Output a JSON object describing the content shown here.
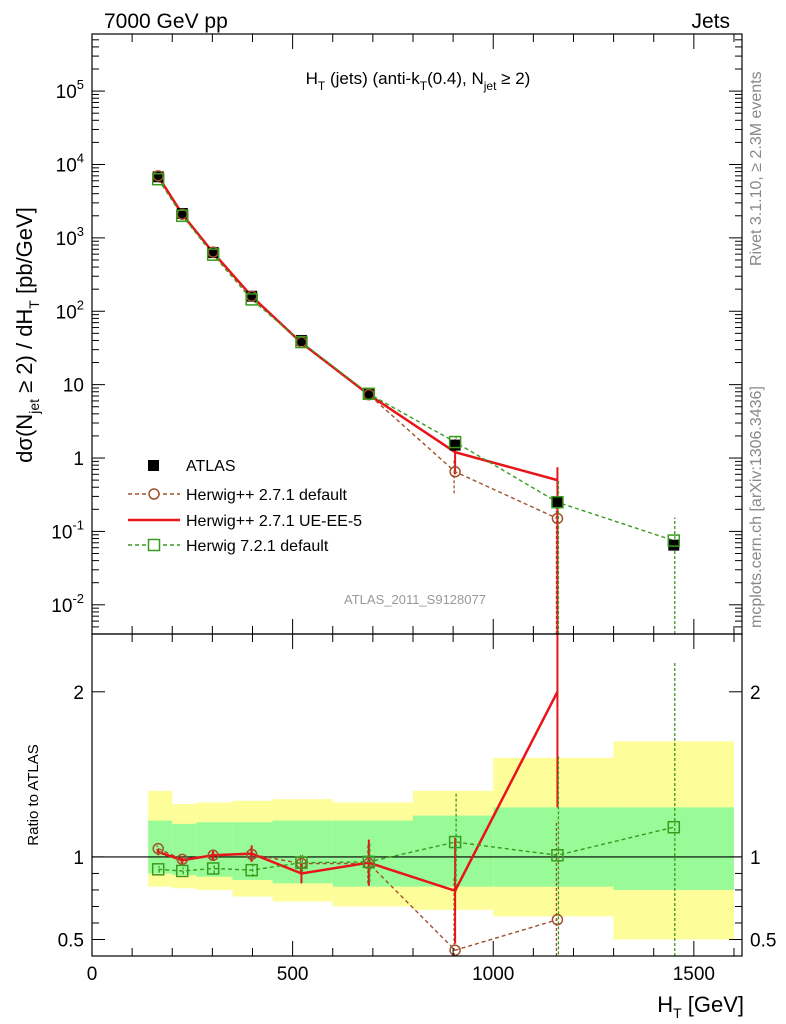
{
  "header": {
    "left": "7000 GeV pp",
    "right": "Jets"
  },
  "side_labels": {
    "rivet": "Rivet 3.1.10, ≥ 2.3M events",
    "mcplots": "mcplots.cern.ch [arXiv:1306.3436]"
  },
  "colors": {
    "atlas": "#000000",
    "herwigpp_default": "#a0522d",
    "herwigpp_ue": "#e8141a",
    "herwig7": "#3a9a1e",
    "band_outer": "#fdfd9a",
    "band_inner": "#98fb98",
    "watermark": "#999999"
  },
  "chart_data": [
    {
      "type": "scatter",
      "title": "H_T (jets) (anti-k_T(0.4), N_jet ≥ 2)",
      "title_parts": {
        "a": "H",
        "a_sub": "T",
        "b": " (jets) (anti-k",
        "b_sub": "T",
        "c": "(0.4), N",
        "c_sub": "jet",
        "d": " ≥ 2)"
      },
      "ylabel": "dσ(N_jet ≥ 2) / dH_T [pb/GeV]",
      "ylabel_parts": {
        "a": "dσ(N",
        "a_sub": "jet",
        "b": " ≥ 2) / dH",
        "b_sub": "T",
        "c": " [pb/GeV]"
      },
      "yscale": "log",
      "ylim": [
        0.004,
        600000
      ],
      "xlim": [
        0,
        1620
      ],
      "ytick_labels": [
        "10^-2",
        "10^-1",
        "1",
        "10",
        "10^2",
        "10^3",
        "10^4",
        "10^5"
      ],
      "watermark": "ATLAS_2011_S9128077",
      "legend_placement": "lower-left",
      "series": [
        {
          "name": "ATLAS",
          "style": "filled-square",
          "x": [
            165,
            225,
            302,
            398,
            522,
            690,
            905,
            1160,
            1450
          ],
          "y": [
            6800,
            2150,
            630,
            160,
            40,
            7.6,
            1.5,
            0.25,
            0.065
          ]
        },
        {
          "name": "Herwig++ 2.7.1 default",
          "style": "open-circle-dashed",
          "x": [
            165,
            225,
            302,
            398,
            522,
            690,
            905,
            1160
          ],
          "y": [
            7000,
            2100,
            640,
            160,
            38,
            7.3,
            0.65,
            0.15
          ],
          "yerr_lo": [
            0,
            0,
            0,
            0,
            0,
            0,
            0.32,
            0.149
          ],
          "yerr_hi": [
            0,
            0,
            0,
            0,
            0,
            0,
            0.32,
            0.15
          ]
        },
        {
          "name": "Herwig++ 2.7.1 UE-EE-5",
          "style": "solid-line",
          "x": [
            165,
            225,
            302,
            398,
            522,
            690,
            905,
            1160
          ],
          "y": [
            6900,
            2100,
            630,
            160,
            37,
            7.3,
            1.2,
            0.5
          ],
          "yerr_lo": [
            0,
            0,
            0,
            0,
            0,
            0,
            0.6,
            0.499
          ],
          "yerr_hi": [
            0,
            0,
            0,
            0,
            0,
            0,
            0.6,
            0.25
          ]
        },
        {
          "name": "Herwig 7.2.1 default",
          "style": "open-square-dashed",
          "x": [
            165,
            225,
            302,
            398,
            522,
            690,
            905,
            1160,
            1450
          ],
          "y": [
            6300,
            2000,
            590,
            145,
            38,
            7.5,
            1.65,
            0.25,
            0.075
          ],
          "yerr_lo": [
            0,
            0,
            0,
            0,
            0,
            0,
            0.3,
            0.249,
            0.0749
          ],
          "yerr_hi": [
            0,
            0,
            0,
            0,
            0,
            0,
            0.3,
            0.25,
            0.08
          ]
        }
      ]
    },
    {
      "type": "line",
      "ylabel": "Ratio to ATLAS",
      "xlabel": "H_T [GeV]",
      "xlabel_parts": {
        "a": "H",
        "a_sub": "T",
        "b": " [GeV]"
      },
      "xlim": [
        0,
        1620
      ],
      "ylim": [
        0.4,
        2.35
      ],
      "ytick_labels": [
        "0.5",
        "1",
        "2"
      ],
      "xtick_labels": [
        "0",
        "500",
        "1000",
        "1500"
      ],
      "xticks": [
        0,
        500,
        1000,
        1500
      ],
      "bands": {
        "edges": [
          140,
          200,
          260,
          350,
          450,
          600,
          800,
          1000,
          1300,
          1600
        ],
        "outer_lo": [
          0.82,
          0.81,
          0.8,
          0.76,
          0.73,
          0.7,
          0.68,
          0.64,
          0.5
        ],
        "outer_hi": [
          1.4,
          1.32,
          1.33,
          1.34,
          1.35,
          1.33,
          1.4,
          1.6,
          1.7
        ],
        "inner_lo": [
          0.9,
          0.89,
          0.88,
          0.86,
          0.84,
          0.82,
          0.82,
          0.82,
          0.8
        ],
        "inner_hi": [
          1.22,
          1.2,
          1.21,
          1.21,
          1.22,
          1.22,
          1.25,
          1.3,
          1.3
        ]
      },
      "series": [
        {
          "name": "Herwig++ 2.7.1 default",
          "x": [
            165,
            225,
            302,
            398,
            522,
            690,
            905,
            1160
          ],
          "y": [
            1.05,
            0.985,
            1.01,
            1.015,
            0.96,
            0.96,
            0.435,
            0.62
          ],
          "yerr": [
            0.02,
            0.02,
            0.03,
            0.04,
            0.05,
            0.12,
            0.45,
            0.6
          ]
        },
        {
          "name": "Herwig++ 2.7.1 UE-EE-5",
          "x": [
            165,
            225,
            302,
            398,
            522,
            690,
            905,
            1160
          ],
          "y": [
            1.03,
            0.98,
            1.01,
            1.02,
            0.9,
            0.965,
            0.795,
            2.0
          ],
          "yerr": [
            0.02,
            0.02,
            0.03,
            0.05,
            0.06,
            0.14,
            0.32,
            0.7
          ]
        },
        {
          "name": "Herwig 7.2.1 default",
          "x": [
            165,
            225,
            302,
            398,
            522,
            690,
            905,
            1160,
            1450
          ],
          "y": [
            0.925,
            0.915,
            0.93,
            0.92,
            0.965,
            0.97,
            1.09,
            1.01,
            1.18
          ],
          "yerr": [
            0.02,
            0.02,
            0.03,
            0.04,
            0.06,
            0.12,
            0.3,
            0.6,
            1.0
          ]
        }
      ]
    }
  ]
}
